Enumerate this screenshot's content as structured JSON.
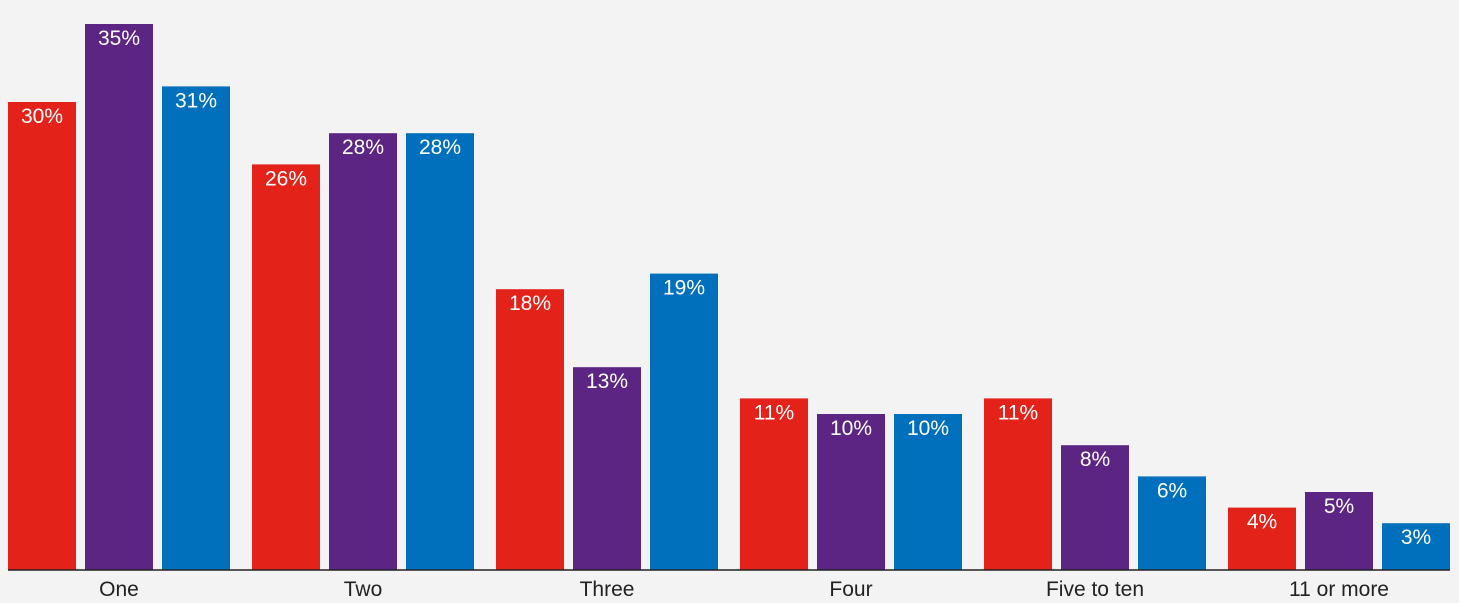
{
  "chart_data": {
    "type": "bar",
    "categories": [
      "One",
      "Two",
      "Three",
      "Four",
      "Five to ten",
      "11 or more"
    ],
    "series": [
      {
        "color": "#e32219",
        "values": [
          30,
          26,
          18,
          11,
          11,
          4
        ]
      },
      {
        "color": "#5c2483",
        "values": [
          35,
          28,
          13,
          10,
          8,
          5
        ]
      },
      {
        "color": "#0070bc",
        "values": [
          31,
          28,
          19,
          10,
          6,
          3
        ]
      }
    ],
    "value_suffix": "%",
    "ylim": [
      0,
      35
    ],
    "grid": false,
    "legend": "none",
    "background_color": "#f3f3f3",
    "axis_color": "#222222"
  }
}
